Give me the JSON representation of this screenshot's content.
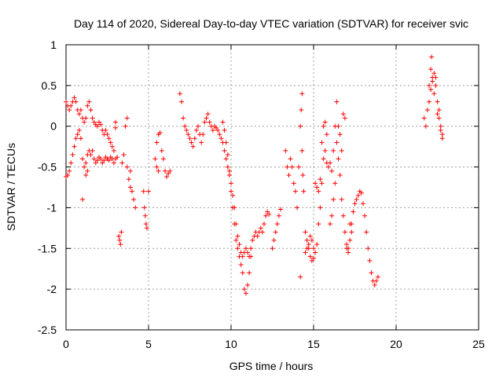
{
  "chart_data": {
    "type": "scatter",
    "title": "Day 114 of 2020, Sidereal Day-to-day VTEC variation (SDTVAR) for receiver svic",
    "xlabel": "GPS time / hours",
    "ylabel": "SDTVAR / TECUs",
    "xlim": [
      0,
      25
    ],
    "ylim": [
      -2.5,
      1
    ],
    "x_ticks": [
      0,
      5,
      10,
      15,
      20,
      25
    ],
    "y_ticks": [
      1,
      0.5,
      0,
      -0.5,
      -1,
      -1.5,
      -2,
      -2.5
    ],
    "x_tick_labels": [
      "0",
      "5",
      "10",
      "15",
      "20",
      "25"
    ],
    "y_tick_labels": [
      "1",
      "0.5",
      "0",
      "-0.5",
      "-1",
      "-1.5",
      "-2",
      "-2.5"
    ],
    "marker": "+",
    "color": "#ff0000",
    "grid": true,
    "series": [
      {
        "name": "svic",
        "points": [
          [
            0.0,
            0.3
          ],
          [
            0.1,
            0.25
          ],
          [
            0.2,
            0.2
          ],
          [
            0.3,
            0.25
          ],
          [
            0.4,
            0.3
          ],
          [
            0.5,
            0.35
          ],
          [
            0.6,
            0.3
          ],
          [
            0.7,
            0.2
          ],
          [
            0.8,
            0.15
          ],
          [
            0.9,
            0.2
          ],
          [
            1.0,
            0.1
          ],
          [
            1.1,
            0.05
          ],
          [
            1.2,
            0.1
          ],
          [
            1.3,
            0.25
          ],
          [
            1.4,
            0.3
          ],
          [
            1.5,
            0.2
          ],
          [
            1.6,
            0.1
          ],
          [
            1.7,
            0.05
          ],
          [
            1.8,
            0.02
          ],
          [
            1.9,
            0.0
          ],
          [
            2.0,
            0.05
          ],
          [
            2.1,
            0.02
          ],
          [
            2.2,
            -0.05
          ],
          [
            2.3,
            -0.1
          ],
          [
            2.4,
            -0.05
          ],
          [
            2.5,
            -0.1
          ],
          [
            2.6,
            -0.15
          ],
          [
            2.7,
            -0.2
          ],
          [
            2.8,
            -0.25
          ],
          [
            2.9,
            -0.3
          ],
          [
            0.0,
            -0.62
          ],
          [
            0.1,
            -0.6
          ],
          [
            0.2,
            -0.55
          ],
          [
            0.3,
            -0.45
          ],
          [
            0.4,
            -0.35
          ],
          [
            0.5,
            -0.25
          ],
          [
            0.6,
            -0.15
          ],
          [
            0.7,
            -0.1
          ],
          [
            0.8,
            -0.05
          ],
          [
            0.9,
            -0.15
          ],
          [
            1.0,
            -0.4
          ],
          [
            1.1,
            -0.5
          ],
          [
            1.2,
            -0.45
          ],
          [
            1.3,
            -0.35
          ],
          [
            1.4,
            -0.3
          ],
          [
            1.5,
            -0.35
          ],
          [
            1.6,
            -0.3
          ],
          [
            1.7,
            -0.4
          ],
          [
            1.8,
            -0.45
          ],
          [
            1.9,
            -0.42
          ],
          [
            2.0,
            -0.38
          ],
          [
            2.1,
            -0.4
          ],
          [
            2.2,
            -0.45
          ],
          [
            2.3,
            -0.42
          ],
          [
            2.4,
            -0.38
          ],
          [
            2.5,
            -0.4
          ],
          [
            2.6,
            -0.42
          ],
          [
            2.7,
            -0.38
          ],
          [
            2.8,
            -0.4
          ],
          [
            2.9,
            -0.45
          ],
          [
            3.0,
            -0.4
          ],
          [
            3.1,
            -0.38
          ],
          [
            1.0,
            -0.9
          ],
          [
            1.2,
            -0.6
          ],
          [
            1.3,
            -0.55
          ],
          [
            3.0,
            0.05
          ],
          [
            3.0,
            -0.02
          ],
          [
            3.2,
            -1.35
          ],
          [
            3.25,
            -1.4
          ],
          [
            3.3,
            -1.45
          ],
          [
            3.35,
            -1.3
          ],
          [
            3.4,
            -0.45
          ],
          [
            3.5,
            -0.35
          ],
          [
            3.6,
            0.0
          ],
          [
            3.7,
            0.1
          ],
          [
            3.8,
            -0.65
          ],
          [
            3.9,
            -0.75
          ],
          [
            4.0,
            -0.8
          ],
          [
            4.1,
            -0.9
          ],
          [
            4.2,
            -1.0
          ],
          [
            3.7,
            -0.5
          ],
          [
            3.9,
            -0.55
          ],
          [
            4.7,
            -0.8
          ],
          [
            4.75,
            -1.0
          ],
          [
            4.8,
            -1.1
          ],
          [
            4.85,
            -1.2
          ],
          [
            4.9,
            -1.25
          ],
          [
            5.0,
            -0.8
          ],
          [
            5.4,
            -0.4
          ],
          [
            5.5,
            -0.2
          ],
          [
            5.6,
            -0.1
          ],
          [
            5.7,
            -0.08
          ],
          [
            5.8,
            -0.3
          ],
          [
            5.9,
            -0.4
          ],
          [
            6.0,
            -0.55
          ],
          [
            6.1,
            -0.62
          ],
          [
            6.2,
            -0.58
          ],
          [
            6.3,
            -0.55
          ],
          [
            5.5,
            -0.5
          ],
          [
            5.6,
            -0.55
          ],
          [
            6.9,
            0.4
          ],
          [
            7.0,
            0.3
          ],
          [
            7.1,
            0.1
          ],
          [
            7.2,
            0.0
          ],
          [
            7.3,
            -0.05
          ],
          [
            7.4,
            -0.1
          ],
          [
            7.5,
            -0.15
          ],
          [
            7.6,
            -0.2
          ],
          [
            7.7,
            -0.25
          ],
          [
            7.8,
            -0.15
          ],
          [
            7.9,
            -0.05
          ],
          [
            8.0,
            0.0
          ],
          [
            8.1,
            -0.1
          ],
          [
            8.2,
            -0.2
          ],
          [
            8.3,
            -0.1
          ],
          [
            8.4,
            0.05
          ],
          [
            8.5,
            0.1
          ],
          [
            8.6,
            0.15
          ],
          [
            8.7,
            0.05
          ],
          [
            8.8,
            0.0
          ],
          [
            8.9,
            -0.05
          ],
          [
            9.0,
            0.0
          ],
          [
            9.1,
            -0.02
          ],
          [
            9.2,
            -0.05
          ],
          [
            9.3,
            -0.1
          ],
          [
            9.4,
            -0.15
          ],
          [
            9.5,
            -0.2
          ],
          [
            9.6,
            -0.3
          ],
          [
            9.7,
            -0.4
          ],
          [
            9.8,
            -0.5
          ],
          [
            9.9,
            -0.6
          ],
          [
            10.0,
            -0.8
          ],
          [
            10.1,
            -1.0
          ],
          [
            10.2,
            -1.2
          ],
          [
            10.3,
            -1.4
          ],
          [
            10.4,
            -1.5
          ],
          [
            10.5,
            -1.6
          ],
          [
            10.6,
            -1.7
          ],
          [
            10.7,
            -1.8
          ],
          [
            10.8,
            -2.0
          ],
          [
            10.9,
            -2.05
          ],
          [
            11.0,
            -1.95
          ],
          [
            11.1,
            -1.8
          ],
          [
            11.2,
            -1.6
          ],
          [
            9.5,
            0.05
          ],
          [
            9.6,
            -0.05
          ],
          [
            9.7,
            -0.2
          ],
          [
            9.8,
            -0.35
          ],
          [
            9.9,
            -0.55
          ],
          [
            10.0,
            -0.7
          ],
          [
            10.1,
            -0.85
          ],
          [
            10.2,
            -1.0
          ],
          [
            10.3,
            -1.2
          ],
          [
            10.4,
            -1.35
          ],
          [
            10.5,
            -1.45
          ],
          [
            10.6,
            -1.55
          ],
          [
            10.7,
            -1.6
          ],
          [
            10.8,
            -1.55
          ],
          [
            10.9,
            -1.5
          ],
          [
            11.0,
            -1.55
          ],
          [
            11.1,
            -1.6
          ],
          [
            11.2,
            -1.5
          ],
          [
            11.3,
            -1.4
          ],
          [
            11.4,
            -1.35
          ],
          [
            11.5,
            -1.3
          ],
          [
            11.6,
            -1.35
          ],
          [
            11.7,
            -1.3
          ],
          [
            11.8,
            -1.25
          ],
          [
            11.9,
            -1.3
          ],
          [
            12.0,
            -1.2
          ],
          [
            12.1,
            -1.1
          ],
          [
            12.2,
            -1.05
          ],
          [
            12.3,
            -1.08
          ],
          [
            12.5,
            -1.5
          ],
          [
            12.6,
            -1.4
          ],
          [
            12.7,
            -1.3
          ],
          [
            12.8,
            -1.2
          ],
          [
            12.9,
            -1.1
          ],
          [
            13.0,
            -1.02
          ],
          [
            13.3,
            -0.3
          ],
          [
            13.4,
            -0.5
          ],
          [
            13.5,
            -0.6
          ],
          [
            13.6,
            -0.4
          ],
          [
            13.7,
            -0.5
          ],
          [
            13.8,
            -0.7
          ],
          [
            13.9,
            -0.8
          ],
          [
            14.0,
            -1.0
          ],
          [
            14.1,
            -0.5
          ],
          [
            14.2,
            0.0
          ],
          [
            14.25,
            0.2
          ],
          [
            14.3,
            -0.3
          ],
          [
            14.35,
            -0.6
          ],
          [
            14.4,
            -0.8
          ],
          [
            14.5,
            -1.3
          ],
          [
            14.6,
            -1.5
          ],
          [
            14.7,
            -1.45
          ],
          [
            14.8,
            -1.35
          ],
          [
            14.9,
            -1.4
          ],
          [
            15.0,
            -1.5
          ],
          [
            15.1,
            -1.55
          ],
          [
            15.2,
            -1.45
          ],
          [
            15.3,
            -1.2
          ],
          [
            15.4,
            -1.0
          ],
          [
            15.5,
            -0.7
          ],
          [
            15.6,
            -0.4
          ],
          [
            15.7,
            -0.3
          ],
          [
            15.8,
            -0.45
          ],
          [
            15.9,
            -0.5
          ],
          [
            16.0,
            -0.45
          ],
          [
            16.1,
            -0.55
          ],
          [
            16.2,
            -0.3
          ],
          [
            16.3,
            0.0
          ],
          [
            16.4,
            -0.2
          ],
          [
            16.5,
            -0.4
          ],
          [
            16.6,
            -0.6
          ],
          [
            16.7,
            -0.9
          ],
          [
            16.8,
            -1.1
          ],
          [
            16.9,
            -1.3
          ],
          [
            17.0,
            -1.45
          ],
          [
            17.1,
            -1.5
          ],
          [
            17.2,
            -1.4
          ],
          [
            17.3,
            -1.2
          ],
          [
            17.4,
            -1.05
          ],
          [
            17.5,
            -0.95
          ],
          [
            17.6,
            -0.9
          ],
          [
            17.7,
            -0.85
          ],
          [
            17.8,
            -0.8
          ],
          [
            17.9,
            -0.82
          ],
          [
            18.0,
            -0.95
          ],
          [
            18.1,
            -1.1
          ],
          [
            18.2,
            -1.3
          ],
          [
            18.3,
            -1.5
          ],
          [
            18.4,
            -1.65
          ],
          [
            18.5,
            -1.8
          ],
          [
            18.6,
            -1.9
          ],
          [
            18.7,
            -1.95
          ],
          [
            18.8,
            -1.9
          ],
          [
            18.9,
            -1.85
          ],
          [
            14.2,
            -1.85
          ],
          [
            14.3,
            0.4
          ],
          [
            14.5,
            -1.55
          ],
          [
            14.6,
            -1.4
          ],
          [
            14.7,
            -1.5
          ],
          [
            14.8,
            -1.6
          ],
          [
            14.9,
            -1.65
          ],
          [
            15.0,
            -1.62
          ],
          [
            15.1,
            -0.7
          ],
          [
            15.2,
            -0.75
          ],
          [
            15.3,
            -0.8
          ],
          [
            15.4,
            -0.65
          ],
          [
            15.5,
            -0.2
          ],
          [
            15.6,
            0.0
          ],
          [
            15.7,
            0.05
          ],
          [
            15.8,
            -0.1
          ],
          [
            16.0,
            -1.2
          ],
          [
            16.1,
            -1.1
          ],
          [
            16.2,
            -0.9
          ],
          [
            16.3,
            -0.7
          ],
          [
            16.4,
            0.3
          ],
          [
            16.5,
            0.0
          ],
          [
            16.6,
            -0.1
          ],
          [
            16.7,
            -0.3
          ],
          [
            16.8,
            0.15
          ],
          [
            16.9,
            0.1
          ],
          [
            17.0,
            -1.5
          ],
          [
            17.1,
            -1.55
          ],
          [
            17.2,
            -1.2
          ],
          [
            17.3,
            -1.3
          ],
          [
            21.7,
            0.1
          ],
          [
            21.8,
            0.0
          ],
          [
            21.9,
            0.2
          ],
          [
            22.0,
            0.5
          ],
          [
            22.1,
            0.7
          ],
          [
            22.15,
            0.85
          ],
          [
            22.2,
            0.6
          ],
          [
            22.3,
            0.65
          ],
          [
            22.4,
            0.5
          ],
          [
            22.5,
            0.3
          ],
          [
            22.6,
            0.2
          ],
          [
            22.7,
            0.0
          ],
          [
            22.8,
            -0.1
          ],
          [
            22.0,
            0.3
          ],
          [
            22.1,
            0.45
          ],
          [
            22.2,
            0.55
          ],
          [
            22.3,
            0.4
          ],
          [
            22.4,
            0.6
          ],
          [
            22.5,
            0.15
          ],
          [
            22.6,
            0.1
          ],
          [
            22.7,
            -0.05
          ],
          [
            22.8,
            -0.15
          ]
        ]
      }
    ]
  }
}
